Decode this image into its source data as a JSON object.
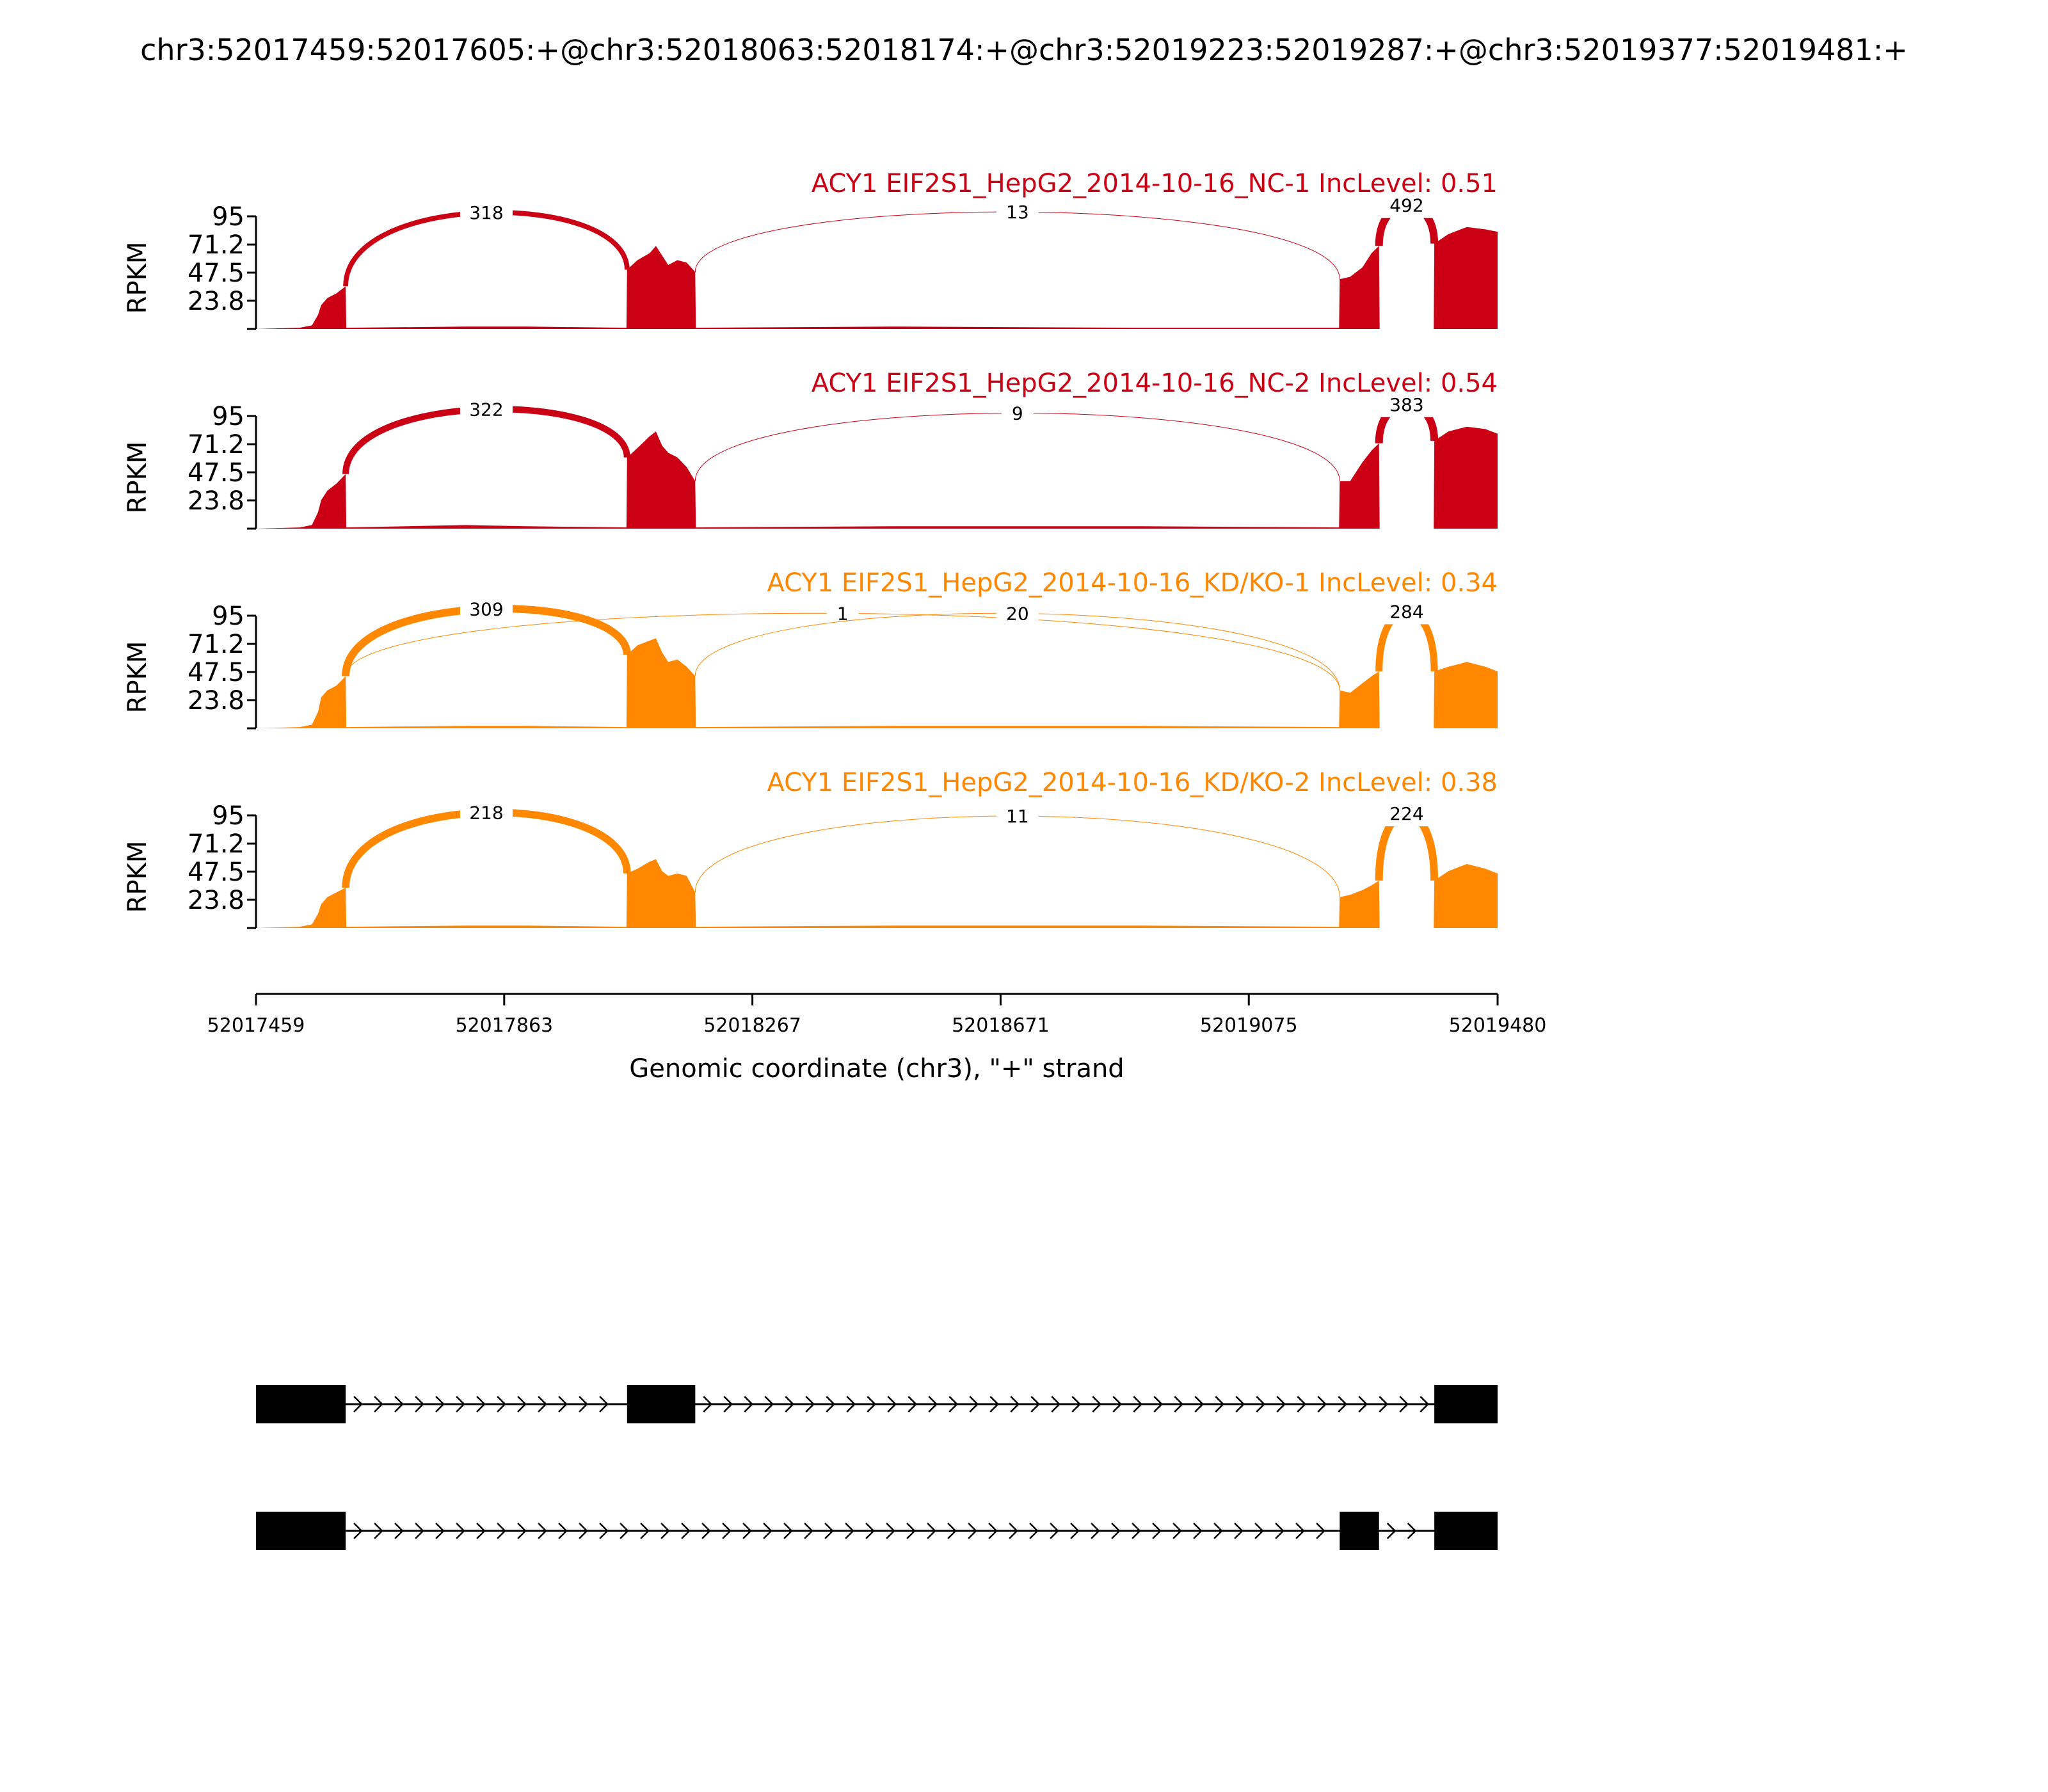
{
  "title": "chr3:52017459:52017605:+@chr3:52018063:52018174:+@chr3:52019223:52019287:+@chr3:52019377:52019481:+",
  "colors": {
    "NC": "#cc0014",
    "KD": "#ff8800",
    "axis": "#000000",
    "gene": "#000000"
  },
  "chart_data": {
    "type": "area",
    "subtype": "sashimi",
    "xlim": [
      52017459,
      52019480
    ],
    "xticks": [
      "52017459",
      "52017863",
      "52018267",
      "52018671",
      "52019075",
      "52019480"
    ],
    "xlabel": "Genomic coordinate (chr3), \"+\" strand",
    "ylabel": "RPKM",
    "ylim": [
      0,
      95
    ],
    "yticks": [
      "95",
      "71.2",
      "47.5",
      "23.8"
    ],
    "exons": [
      {
        "start": 52017459,
        "end": 52017605
      },
      {
        "start": 52018063,
        "end": 52018174
      },
      {
        "start": 52019223,
        "end": 52019287
      },
      {
        "start": 52019377,
        "end": 52019481
      }
    ],
    "panels": [
      {
        "label": "ACY1 EIF2S1_HepG2_2014-10-16_NC-1 IncLevel: 0.51",
        "group": "NC",
        "coverage": [
          {
            "x": 52017459,
            "y": 0
          },
          {
            "x": 52017530,
            "y": 1
          },
          {
            "x": 52017550,
            "y": 3
          },
          {
            "x": 52017560,
            "y": 12
          },
          {
            "x": 52017565,
            "y": 20
          },
          {
            "x": 52017575,
            "y": 26
          },
          {
            "x": 52017590,
            "y": 30
          },
          {
            "x": 52017605,
            "y": 36
          },
          {
            "x": 52017606,
            "y": 1
          },
          {
            "x": 52017800,
            "y": 2
          },
          {
            "x": 52017900,
            "y": 2
          },
          {
            "x": 52018062,
            "y": 1
          },
          {
            "x": 52018063,
            "y": 50
          },
          {
            "x": 52018080,
            "y": 58
          },
          {
            "x": 52018100,
            "y": 64
          },
          {
            "x": 52018110,
            "y": 70
          },
          {
            "x": 52018120,
            "y": 62
          },
          {
            "x": 52018130,
            "y": 54
          },
          {
            "x": 52018145,
            "y": 58
          },
          {
            "x": 52018160,
            "y": 56
          },
          {
            "x": 52018174,
            "y": 48
          },
          {
            "x": 52018175,
            "y": 1
          },
          {
            "x": 52018500,
            "y": 2
          },
          {
            "x": 52018900,
            "y": 1
          },
          {
            "x": 52019222,
            "y": 1
          },
          {
            "x": 52019223,
            "y": 42
          },
          {
            "x": 52019240,
            "y": 44
          },
          {
            "x": 52019260,
            "y": 52
          },
          {
            "x": 52019275,
            "y": 64
          },
          {
            "x": 52019287,
            "y": 70
          },
          {
            "x": 52019288,
            "y": 0
          },
          {
            "x": 52019376,
            "y": 0
          },
          {
            "x": 52019377,
            "y": 72
          },
          {
            "x": 52019400,
            "y": 80
          },
          {
            "x": 52019430,
            "y": 86
          },
          {
            "x": 52019460,
            "y": 84
          },
          {
            "x": 52019480,
            "y": 82
          }
        ],
        "junctions": [
          {
            "start": 52017605,
            "end": 52018063,
            "count": "318"
          },
          {
            "start": 52018174,
            "end": 52019223,
            "count": "13"
          },
          {
            "start": 52019287,
            "end": 52019377,
            "count": "492"
          }
        ]
      },
      {
        "label": "ACY1 EIF2S1_HepG2_2014-10-16_NC-2 IncLevel: 0.54",
        "group": "NC",
        "coverage": [
          {
            "x": 52017459,
            "y": 0
          },
          {
            "x": 52017530,
            "y": 1
          },
          {
            "x": 52017550,
            "y": 3
          },
          {
            "x": 52017560,
            "y": 14
          },
          {
            "x": 52017565,
            "y": 24
          },
          {
            "x": 52017575,
            "y": 32
          },
          {
            "x": 52017590,
            "y": 38
          },
          {
            "x": 52017605,
            "y": 46
          },
          {
            "x": 52017606,
            "y": 1
          },
          {
            "x": 52017800,
            "y": 3
          },
          {
            "x": 52017900,
            "y": 2
          },
          {
            "x": 52018062,
            "y": 1
          },
          {
            "x": 52018063,
            "y": 60
          },
          {
            "x": 52018080,
            "y": 68
          },
          {
            "x": 52018100,
            "y": 78
          },
          {
            "x": 52018110,
            "y": 82
          },
          {
            "x": 52018120,
            "y": 70
          },
          {
            "x": 52018130,
            "y": 64
          },
          {
            "x": 52018145,
            "y": 60
          },
          {
            "x": 52018160,
            "y": 52
          },
          {
            "x": 52018174,
            "y": 40
          },
          {
            "x": 52018175,
            "y": 1
          },
          {
            "x": 52018500,
            "y": 2
          },
          {
            "x": 52018900,
            "y": 2
          },
          {
            "x": 52019222,
            "y": 1
          },
          {
            "x": 52019223,
            "y": 40
          },
          {
            "x": 52019240,
            "y": 40
          },
          {
            "x": 52019260,
            "y": 56
          },
          {
            "x": 52019275,
            "y": 66
          },
          {
            "x": 52019287,
            "y": 72
          },
          {
            "x": 52019288,
            "y": 0
          },
          {
            "x": 52019376,
            "y": 0
          },
          {
            "x": 52019377,
            "y": 74
          },
          {
            "x": 52019400,
            "y": 82
          },
          {
            "x": 52019430,
            "y": 86
          },
          {
            "x": 52019460,
            "y": 84
          },
          {
            "x": 52019480,
            "y": 80
          }
        ],
        "junctions": [
          {
            "start": 52017605,
            "end": 52018063,
            "count": "322"
          },
          {
            "start": 52018174,
            "end": 52019223,
            "count": "9"
          },
          {
            "start": 52019287,
            "end": 52019377,
            "count": "383"
          }
        ]
      },
      {
        "label": "ACY1 EIF2S1_HepG2_2014-10-16_KD/KO-1 IncLevel: 0.34",
        "group": "KD",
        "coverage": [
          {
            "x": 52017459,
            "y": 0
          },
          {
            "x": 52017530,
            "y": 1
          },
          {
            "x": 52017550,
            "y": 3
          },
          {
            "x": 52017560,
            "y": 14
          },
          {
            "x": 52017565,
            "y": 26
          },
          {
            "x": 52017575,
            "y": 32
          },
          {
            "x": 52017590,
            "y": 36
          },
          {
            "x": 52017605,
            "y": 44
          },
          {
            "x": 52017606,
            "y": 1
          },
          {
            "x": 52017800,
            "y": 2
          },
          {
            "x": 52017900,
            "y": 2
          },
          {
            "x": 52018062,
            "y": 1
          },
          {
            "x": 52018063,
            "y": 62
          },
          {
            "x": 52018080,
            "y": 70
          },
          {
            "x": 52018100,
            "y": 74
          },
          {
            "x": 52018110,
            "y": 76
          },
          {
            "x": 52018120,
            "y": 64
          },
          {
            "x": 52018130,
            "y": 56
          },
          {
            "x": 52018145,
            "y": 58
          },
          {
            "x": 52018160,
            "y": 52
          },
          {
            "x": 52018174,
            "y": 44
          },
          {
            "x": 52018175,
            "y": 1
          },
          {
            "x": 52018500,
            "y": 2
          },
          {
            "x": 52018900,
            "y": 2
          },
          {
            "x": 52019222,
            "y": 1
          },
          {
            "x": 52019223,
            "y": 32
          },
          {
            "x": 52019240,
            "y": 30
          },
          {
            "x": 52019260,
            "y": 38
          },
          {
            "x": 52019275,
            "y": 44
          },
          {
            "x": 52019287,
            "y": 48
          },
          {
            "x": 52019288,
            "y": 0
          },
          {
            "x": 52019376,
            "y": 0
          },
          {
            "x": 52019377,
            "y": 48
          },
          {
            "x": 52019400,
            "y": 52
          },
          {
            "x": 52019430,
            "y": 56
          },
          {
            "x": 52019460,
            "y": 52
          },
          {
            "x": 52019480,
            "y": 48
          }
        ],
        "junctions": [
          {
            "start": 52017605,
            "end": 52018063,
            "count": "309"
          },
          {
            "start": 52017605,
            "end": 52019223,
            "count": "1"
          },
          {
            "start": 52018174,
            "end": 52019223,
            "count": "20"
          },
          {
            "start": 52019287,
            "end": 52019377,
            "count": "284"
          }
        ]
      },
      {
        "label": "ACY1 EIF2S1_HepG2_2014-10-16_KD/KO-2 IncLevel: 0.38",
        "group": "KD",
        "coverage": [
          {
            "x": 52017459,
            "y": 0
          },
          {
            "x": 52017530,
            "y": 1
          },
          {
            "x": 52017550,
            "y": 3
          },
          {
            "x": 52017560,
            "y": 12
          },
          {
            "x": 52017565,
            "y": 20
          },
          {
            "x": 52017575,
            "y": 26
          },
          {
            "x": 52017590,
            "y": 30
          },
          {
            "x": 52017605,
            "y": 34
          },
          {
            "x": 52017606,
            "y": 1
          },
          {
            "x": 52017800,
            "y": 2
          },
          {
            "x": 52017900,
            "y": 2
          },
          {
            "x": 52018062,
            "y": 1
          },
          {
            "x": 52018063,
            "y": 46
          },
          {
            "x": 52018080,
            "y": 50
          },
          {
            "x": 52018100,
            "y": 56
          },
          {
            "x": 52018110,
            "y": 58
          },
          {
            "x": 52018120,
            "y": 48
          },
          {
            "x": 52018130,
            "y": 44
          },
          {
            "x": 52018145,
            "y": 46
          },
          {
            "x": 52018160,
            "y": 44
          },
          {
            "x": 52018174,
            "y": 30
          },
          {
            "x": 52018175,
            "y": 1
          },
          {
            "x": 52018500,
            "y": 2
          },
          {
            "x": 52018900,
            "y": 2
          },
          {
            "x": 52019222,
            "y": 1
          },
          {
            "x": 52019223,
            "y": 26
          },
          {
            "x": 52019240,
            "y": 28
          },
          {
            "x": 52019260,
            "y": 32
          },
          {
            "x": 52019275,
            "y": 36
          },
          {
            "x": 52019287,
            "y": 40
          },
          {
            "x": 52019288,
            "y": 0
          },
          {
            "x": 52019376,
            "y": 0
          },
          {
            "x": 52019377,
            "y": 40
          },
          {
            "x": 52019400,
            "y": 48
          },
          {
            "x": 52019430,
            "y": 54
          },
          {
            "x": 52019460,
            "y": 50
          },
          {
            "x": 52019480,
            "y": 46
          }
        ],
        "junctions": [
          {
            "start": 52017605,
            "end": 52018063,
            "count": "218"
          },
          {
            "start": 52018174,
            "end": 52019223,
            "count": "11"
          },
          {
            "start": 52019287,
            "end": 52019377,
            "count": "224"
          }
        ]
      }
    ],
    "isoforms": [
      {
        "exons": [
          {
            "start": 52017459,
            "end": 52017605
          },
          {
            "start": 52018063,
            "end": 52018174
          },
          {
            "start": 52019377,
            "end": 52019480
          }
        ]
      },
      {
        "exons": [
          {
            "start": 52017459,
            "end": 52017605
          },
          {
            "start": 52019223,
            "end": 52019287
          },
          {
            "start": 52019377,
            "end": 52019480
          }
        ]
      }
    ]
  }
}
